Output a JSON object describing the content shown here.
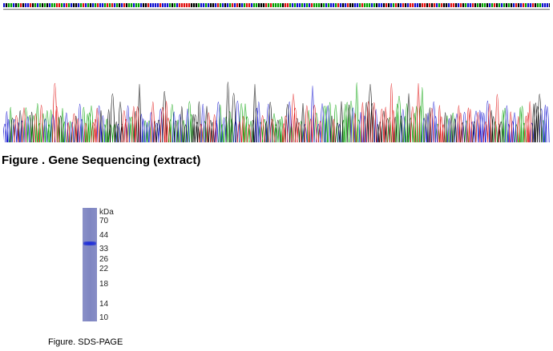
{
  "sequencing": {
    "caption": "Figure . Gene Sequencing (extract)",
    "trace_colors": {
      "A": "#00a000",
      "C": "#1010d0",
      "G": "#000000",
      "T": "#e01010"
    }
  },
  "sds_page": {
    "caption": "Figure. SDS-PAGE",
    "unit_label": "kDa",
    "markers": [
      "70",
      "44",
      "33",
      "26",
      "22",
      "18",
      "14",
      "10"
    ],
    "lane_color": "#8389c4",
    "band_color": "#2433d6"
  }
}
